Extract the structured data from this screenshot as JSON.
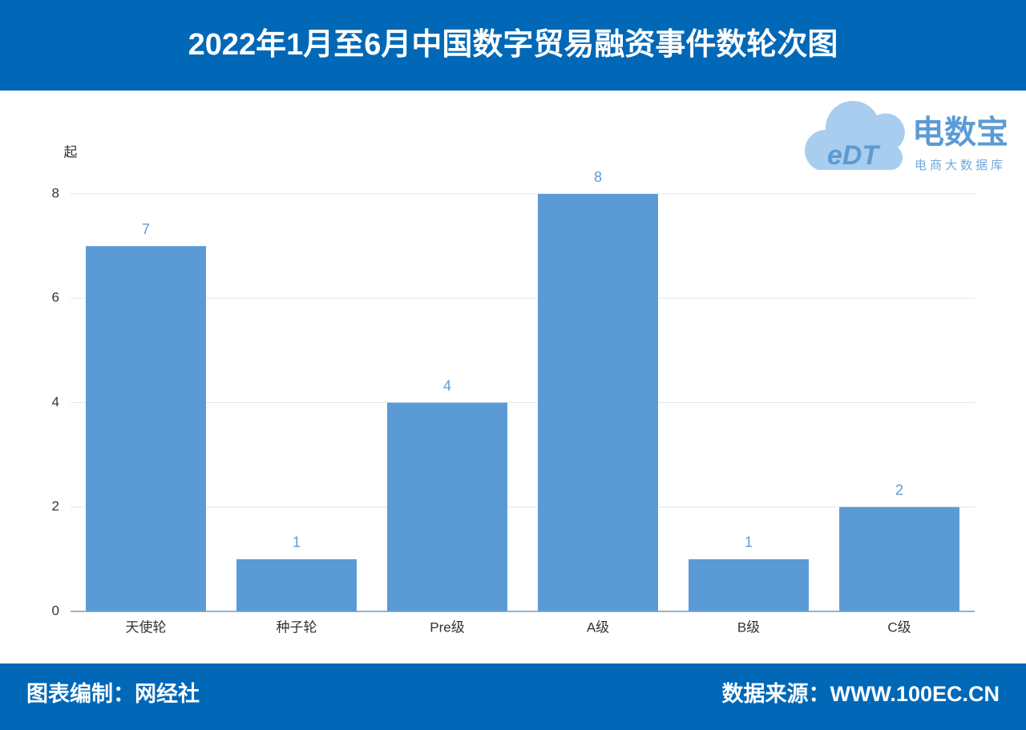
{
  "header": {
    "title": "2022年1月至6月中国数字贸易融资事件数轮次图"
  },
  "logo": {
    "mark": "eDT",
    "name": "电数宝",
    "tagline": "电商大数据库"
  },
  "footer": {
    "left": "图表编制：网经社",
    "right": "数据来源：WWW.100EC.CN"
  },
  "chart_data": {
    "type": "bar",
    "ylabel": "起",
    "categories": [
      "天使轮",
      "种子轮",
      "Pre级",
      "A级",
      "B级",
      "C级"
    ],
    "values": [
      7,
      1,
      4,
      8,
      1,
      2
    ],
    "color": "#5b9bd5",
    "ylim": [
      0,
      8
    ],
    "yticks": [
      0,
      2,
      4,
      6,
      8
    ],
    "grid": true
  }
}
